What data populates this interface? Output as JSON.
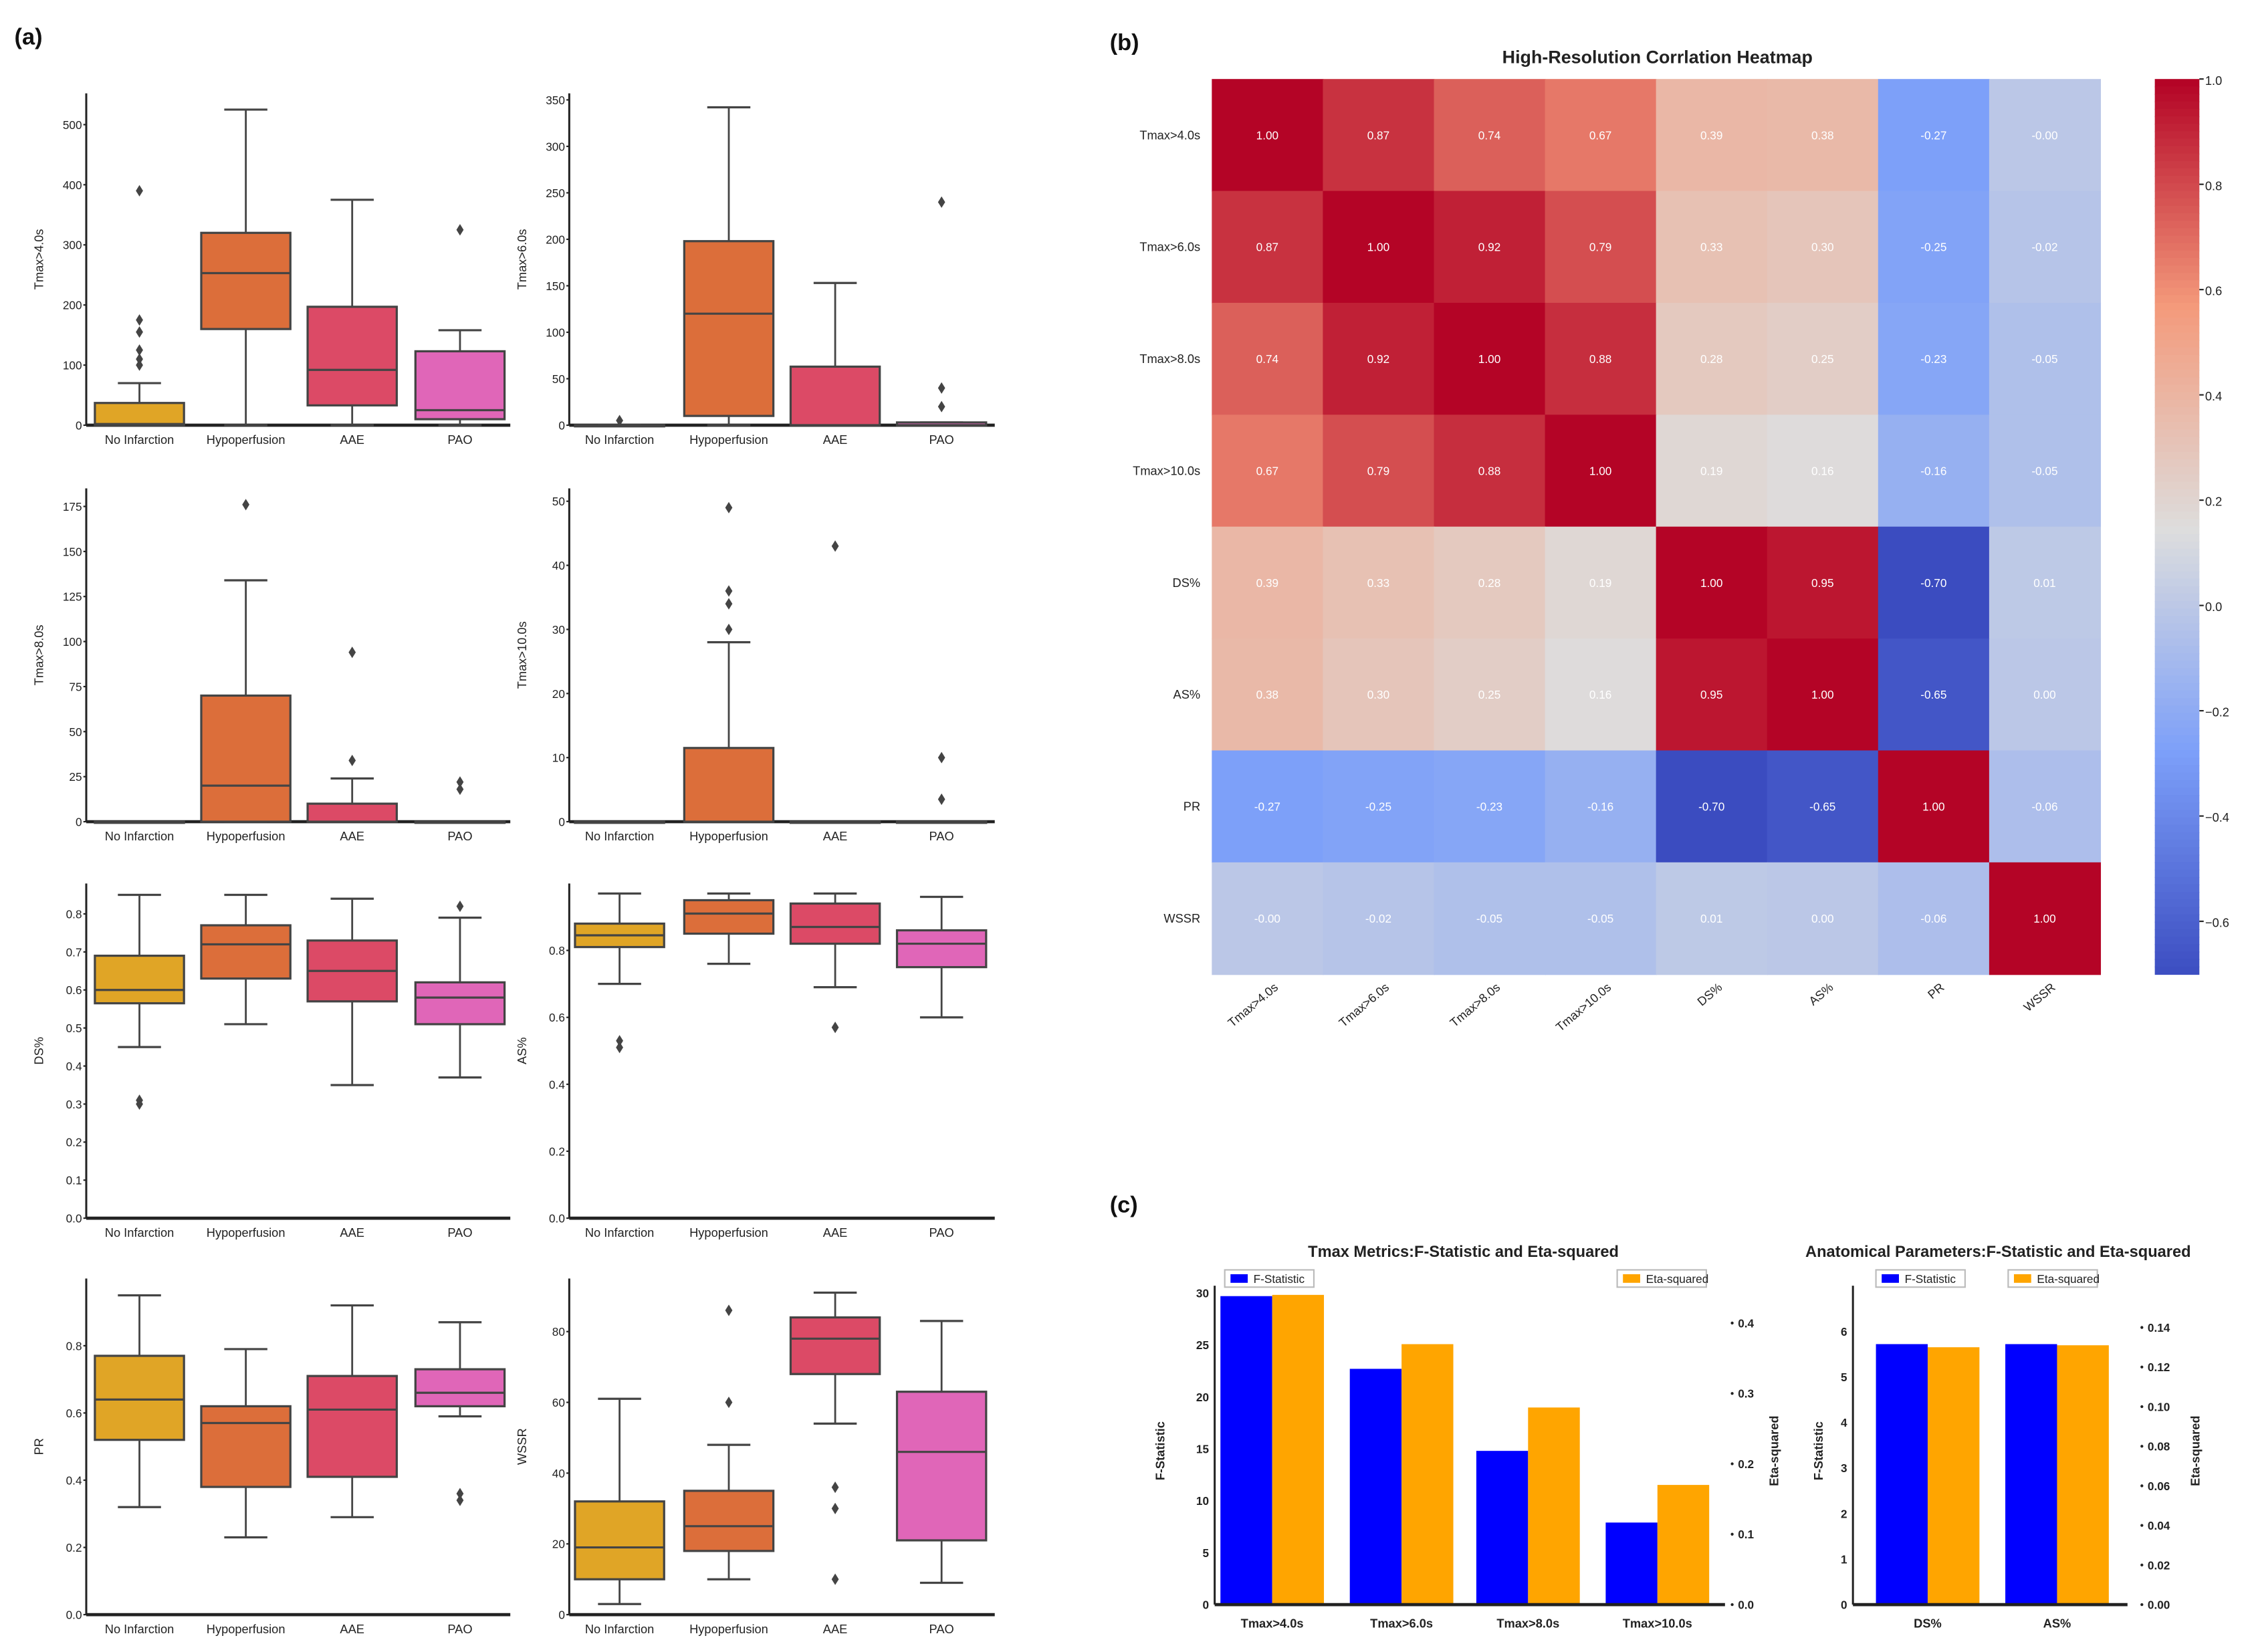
{
  "panel_labels": [
    "(a)",
    "(b)",
    "(c)"
  ],
  "box_colors": [
    "#E0A526",
    "#DC6E3A",
    "#DC4A66",
    "#E066B8"
  ],
  "chart_data": [
    {
      "type": "box",
      "ylabel": "Tmax>4.0s",
      "categories": [
        "No Infarction",
        "Hypoperfusion",
        "AAE",
        "PAO"
      ],
      "ylim": [
        0,
        552
      ],
      "yticks": [
        0,
        100,
        200,
        300,
        400,
        500
      ],
      "ytick_labels": [
        "0",
        "100",
        "200",
        "300",
        "400",
        "500"
      ],
      "boxes": [
        {
          "min": 0,
          "q1": 0,
          "median": 2,
          "q3": 37,
          "max": 70,
          "outliers": [
            390,
            175,
            155,
            125,
            110,
            100
          ]
        },
        {
          "min": 0,
          "q1": 160,
          "median": 253,
          "q3": 320,
          "max": 525,
          "outliers": []
        },
        {
          "min": 0,
          "q1": 33,
          "median": 92,
          "q3": 197,
          "max": 375,
          "outliers": []
        },
        {
          "min": 0,
          "q1": 10,
          "median": 25,
          "q3": 123,
          "max": 158,
          "outliers": [
            325
          ]
        }
      ]
    },
    {
      "type": "box",
      "ylabel": "Tmax>6.0s",
      "categories": [
        "No Infarction",
        "Hypoperfusion",
        "AAE",
        "PAO"
      ],
      "ylim": [
        0,
        357
      ],
      "yticks": [
        0,
        50,
        100,
        150,
        200,
        250,
        300,
        350
      ],
      "ytick_labels": [
        "0",
        "50",
        "100",
        "150",
        "200",
        "250",
        "300",
        "350"
      ],
      "boxes": [
        {
          "min": 0,
          "q1": 0,
          "median": 0,
          "q3": 0,
          "max": 0,
          "outliers": [
            5
          ]
        },
        {
          "min": 0,
          "q1": 10,
          "median": 120,
          "q3": 198,
          "max": 342,
          "outliers": []
        },
        {
          "min": 0,
          "q1": 0,
          "median": 0,
          "q3": 63,
          "max": 153,
          "outliers": []
        },
        {
          "min": 0,
          "q1": 0,
          "median": 0,
          "q3": 3,
          "max": 3,
          "outliers": [
            240,
            40,
            20
          ]
        }
      ]
    },
    {
      "type": "box",
      "ylabel": "Tmax>8.0s",
      "categories": [
        "No Infarction",
        "Hypoperfusion",
        "AAE",
        "PAO"
      ],
      "ylim": [
        0,
        185
      ],
      "yticks": [
        0,
        25,
        50,
        75,
        100,
        125,
        150,
        175
      ],
      "ytick_labels": [
        "0",
        "25",
        "50",
        "75",
        "100",
        "125",
        "150",
        "175"
      ],
      "boxes": [
        {
          "min": 0,
          "q1": 0,
          "median": 0,
          "q3": 0,
          "max": 0,
          "outliers": []
        },
        {
          "min": 0,
          "q1": 0,
          "median": 20,
          "q3": 70,
          "max": 134,
          "outliers": [
            176
          ]
        },
        {
          "min": 0,
          "q1": 0,
          "median": 0,
          "q3": 10,
          "max": 24,
          "outliers": [
            94,
            34
          ]
        },
        {
          "min": 0,
          "q1": 0,
          "median": 0,
          "q3": 0,
          "max": 0,
          "outliers": [
            22,
            18
          ]
        }
      ]
    },
    {
      "type": "box",
      "ylabel": "Tmax>10.0s",
      "categories": [
        "No Infarction",
        "Hypoperfusion",
        "AAE",
        "PAO"
      ],
      "ylim": [
        0,
        52
      ],
      "yticks": [
        0,
        10,
        20,
        30,
        40,
        50
      ],
      "ytick_labels": [
        "0",
        "10",
        "20",
        "30",
        "40",
        "50"
      ],
      "boxes": [
        {
          "min": 0,
          "q1": 0,
          "median": 0,
          "q3": 0,
          "max": 0,
          "outliers": []
        },
        {
          "min": 0,
          "q1": 0,
          "median": 0,
          "q3": 11.5,
          "max": 28,
          "outliers": [
            49,
            36,
            34,
            30
          ]
        },
        {
          "min": 0,
          "q1": 0,
          "median": 0,
          "q3": 0,
          "max": 0,
          "outliers": [
            43
          ]
        },
        {
          "min": 0,
          "q1": 0,
          "median": 0,
          "q3": 0,
          "max": 0,
          "outliers": [
            10,
            3.5
          ]
        }
      ]
    },
    {
      "type": "box",
      "ylabel": "DS%",
      "categories": [
        "No Infarction",
        "Hypoperfusion",
        "AAE",
        "PAO"
      ],
      "ylim": [
        0,
        0.88
      ],
      "yticks": [
        0,
        0.1,
        0.2,
        0.3,
        0.4,
        0.5,
        0.6,
        0.7,
        0.8
      ],
      "ytick_labels": [
        "0.0",
        "0.1",
        "0.2",
        "0.3",
        "0.4",
        "0.5",
        "0.6",
        "0.7",
        "0.8"
      ],
      "boxes": [
        {
          "min": 0.45,
          "q1": 0.565,
          "median": 0.6,
          "q3": 0.69,
          "max": 0.85,
          "outliers": [
            0.31,
            0.3
          ]
        },
        {
          "min": 0.51,
          "q1": 0.63,
          "median": 0.72,
          "q3": 0.77,
          "max": 0.85,
          "outliers": []
        },
        {
          "min": 0.35,
          "q1": 0.57,
          "median": 0.65,
          "q3": 0.73,
          "max": 0.84,
          "outliers": []
        },
        {
          "min": 0.37,
          "q1": 0.51,
          "median": 0.58,
          "q3": 0.62,
          "max": 0.79,
          "outliers": [
            0.82
          ]
        }
      ]
    },
    {
      "type": "box",
      "ylabel": "AS%",
      "categories": [
        "No Infarction",
        "Hypoperfusion",
        "AAE",
        "PAO"
      ],
      "ylim": [
        0,
        1.0
      ],
      "yticks": [
        0,
        0.2,
        0.4,
        0.6,
        0.8
      ],
      "ytick_labels": [
        "0.0",
        "0.2",
        "0.4",
        "0.6",
        "0.8"
      ],
      "boxes": [
        {
          "min": 0.7,
          "q1": 0.81,
          "median": 0.845,
          "q3": 0.88,
          "max": 0.97,
          "outliers": [
            0.53,
            0.51
          ]
        },
        {
          "min": 0.76,
          "q1": 0.85,
          "median": 0.91,
          "q3": 0.95,
          "max": 0.97,
          "outliers": []
        },
        {
          "min": 0.69,
          "q1": 0.82,
          "median": 0.87,
          "q3": 0.94,
          "max": 0.97,
          "outliers": [
            0.57
          ]
        },
        {
          "min": 0.6,
          "q1": 0.75,
          "median": 0.82,
          "q3": 0.86,
          "max": 0.96,
          "outliers": []
        }
      ]
    },
    {
      "type": "box",
      "ylabel": "PR",
      "categories": [
        "No Infarction",
        "Hypoperfusion",
        "AAE",
        "PAO"
      ],
      "ylim": [
        0,
        1.0
      ],
      "yticks": [
        0,
        0.2,
        0.4,
        0.6,
        0.8
      ],
      "ytick_labels": [
        "0.0",
        "0.2",
        "0.4",
        "0.6",
        "0.8"
      ],
      "boxes": [
        {
          "min": 0.32,
          "q1": 0.52,
          "median": 0.64,
          "q3": 0.77,
          "max": 0.95,
          "outliers": []
        },
        {
          "min": 0.23,
          "q1": 0.38,
          "median": 0.57,
          "q3": 0.62,
          "max": 0.79,
          "outliers": []
        },
        {
          "min": 0.29,
          "q1": 0.41,
          "median": 0.61,
          "q3": 0.71,
          "max": 0.92,
          "outliers": []
        },
        {
          "min": 0.59,
          "q1": 0.62,
          "median": 0.66,
          "q3": 0.73,
          "max": 0.87,
          "outliers": [
            0.36,
            0.34
          ]
        }
      ]
    },
    {
      "type": "box",
      "ylabel": "WSSR",
      "categories": [
        "No Infarction",
        "Hypoperfusion",
        "AAE",
        "PAO"
      ],
      "ylim": [
        0,
        95
      ],
      "yticks": [
        0,
        20,
        40,
        60,
        80
      ],
      "ytick_labels": [
        "0",
        "20",
        "40",
        "60",
        "80"
      ],
      "boxes": [
        {
          "min": 3,
          "q1": 10,
          "median": 19,
          "q3": 32,
          "max": 61,
          "outliers": []
        },
        {
          "min": 10,
          "q1": 18,
          "median": 25,
          "q3": 35,
          "max": 48,
          "outliers": [
            86,
            60
          ]
        },
        {
          "min": 54,
          "q1": 68,
          "median": 78,
          "q3": 84,
          "max": 91,
          "outliers": [
            36,
            30,
            10
          ]
        },
        {
          "min": 9,
          "q1": 21,
          "median": 46,
          "q3": 63,
          "max": 83,
          "outliers": []
        }
      ]
    },
    {
      "type": "heatmap",
      "title": "High-Resolution Corrlation Heatmap",
      "labels": [
        "Tmax>4.0s",
        "Tmax>6.0s",
        "Tmax>8.0s",
        "Tmax>10.0s",
        "DS%",
        "AS%",
        "PR",
        "WSSR"
      ],
      "values": [
        [
          1.0,
          0.87,
          0.74,
          0.67,
          0.39,
          0.38,
          -0.27,
          -0.0
        ],
        [
          0.87,
          1.0,
          0.92,
          0.79,
          0.33,
          0.3,
          -0.25,
          -0.02
        ],
        [
          0.74,
          0.92,
          1.0,
          0.88,
          0.28,
          0.25,
          -0.23,
          -0.05
        ],
        [
          0.67,
          0.79,
          0.88,
          1.0,
          0.19,
          0.16,
          -0.16,
          -0.05
        ],
        [
          0.39,
          0.33,
          0.28,
          0.19,
          1.0,
          0.95,
          -0.7,
          0.01
        ],
        [
          0.38,
          0.3,
          0.25,
          0.16,
          0.95,
          1.0,
          -0.65,
          0.0
        ],
        [
          -0.27,
          -0.25,
          -0.23,
          -0.16,
          -0.7,
          -0.65,
          1.0,
          -0.06
        ],
        [
          -0.0,
          -0.02,
          -0.05,
          -0.05,
          0.01,
          0.0,
          -0.06,
          1.0
        ]
      ],
      "cell_labels": [
        [
          "1.00",
          "0.87",
          "0.74",
          "0.67",
          "0.39",
          "0.38",
          "-0.27",
          "-0.00"
        ],
        [
          "0.87",
          "1.00",
          "0.92",
          "0.79",
          "0.33",
          "0.30",
          "-0.25",
          "-0.02"
        ],
        [
          "0.74",
          "0.92",
          "1.00",
          "0.88",
          "0.28",
          "0.25",
          "-0.23",
          "-0.05"
        ],
        [
          "0.67",
          "0.79",
          "0.88",
          "1.00",
          "0.19",
          "0.16",
          "-0.16",
          "-0.05"
        ],
        [
          "0.39",
          "0.33",
          "0.28",
          "0.19",
          "1.00",
          "0.95",
          "-0.70",
          "0.01"
        ],
        [
          "0.38",
          "0.30",
          "0.25",
          "0.16",
          "0.95",
          "1.00",
          "-0.65",
          "0.00"
        ],
        [
          "-0.27",
          "-0.25",
          "-0.23",
          "-0.16",
          "-0.70",
          "-0.65",
          "1.00",
          "-0.06"
        ],
        [
          "-0.00",
          "-0.02",
          "-0.05",
          "-0.05",
          "0.01",
          "0.00",
          "-0.06",
          "1.00"
        ]
      ],
      "colormap": "coolwarm",
      "color_range": [
        -0.7,
        1.0
      ],
      "colorbar_ticks": [
        1.0,
        0.8,
        0.6,
        0.4,
        0.2,
        0.0,
        -0.2,
        -0.4,
        -0.6
      ],
      "colorbar_tick_labels": [
        "1.0",
        "0.8",
        "0.6",
        "0.4",
        "0.2",
        "0.0",
        "−0.2",
        "−0.4",
        "−0.6"
      ]
    },
    {
      "type": "bar",
      "title": "Tmax Metrics:F-Statistic and Eta-squared",
      "categories": [
        "Tmax>4.0s",
        "Tmax>6.0s",
        "Tmax>8.0s",
        "Tmax>10.0s"
      ],
      "series": [
        {
          "name": "F-Statistic",
          "axis": "left",
          "color": "#0000FF",
          "values": [
            29.7,
            22.7,
            14.8,
            7.9
          ]
        },
        {
          "name": "Eta-squared",
          "axis": "right",
          "color": "#FFA500",
          "values": [
            0.44,
            0.37,
            0.28,
            0.17
          ]
        }
      ],
      "ylabel_left": "F-Statistic",
      "ylabel_right": "Eta-squared",
      "yticks_left": [
        "0",
        "5",
        "10",
        "15",
        "20",
        "25",
        "30"
      ],
      "yticks_left_values": [
        0,
        5,
        10,
        15,
        20,
        25,
        30
      ],
      "yticks_right": [
        "0.0",
        "0.1",
        "0.2",
        "0.3",
        "0.4"
      ],
      "yticks_right_values": [
        0,
        0.1,
        0.2,
        0.3,
        0.4
      ]
    },
    {
      "type": "bar",
      "title": "Anatomical Parameters:F-Statistic and Eta-squared",
      "categories": [
        "DS%",
        "AS%"
      ],
      "series": [
        {
          "name": "F-Statistic",
          "axis": "left",
          "color": "#0000FF",
          "values": [
            5.72,
            5.72
          ]
        },
        {
          "name": "Eta-squared",
          "axis": "right",
          "color": "#FFA500",
          "values": [
            0.13,
            0.131
          ]
        }
      ],
      "ylabel_left": "F-Statistic",
      "ylabel_right": "Eta-squared",
      "yticks_left": [
        "0",
        "1",
        "2",
        "3",
        "4",
        "5",
        "6"
      ],
      "yticks_left_values": [
        0,
        1,
        2,
        3,
        4,
        5,
        6
      ],
      "yticks_right": [
        "0.00",
        "0.02",
        "0.04",
        "0.06",
        "0.08",
        "0.10",
        "0.12",
        "0.14"
      ],
      "yticks_right_values": [
        0,
        0.02,
        0.04,
        0.06,
        0.08,
        0.1,
        0.12,
        0.14
      ]
    }
  ]
}
